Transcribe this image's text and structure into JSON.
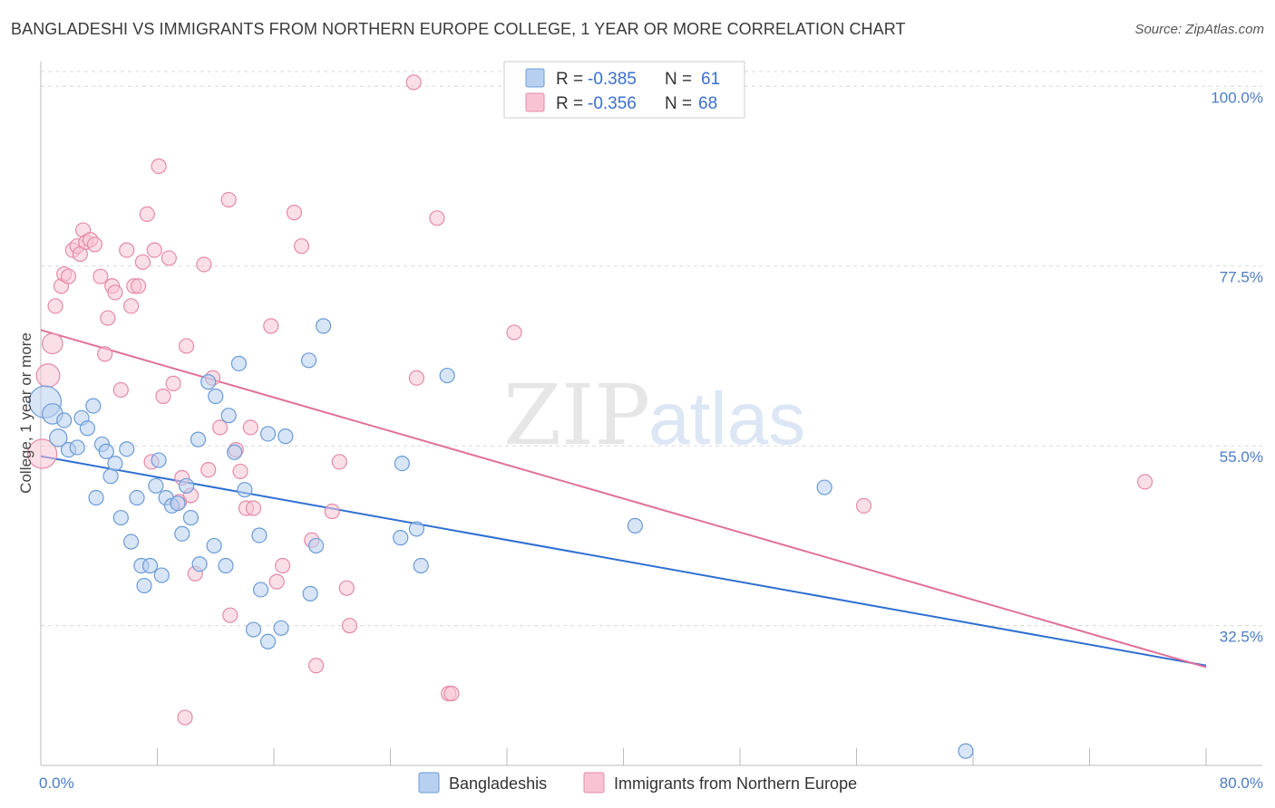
{
  "title": "BANGLADESHI VS IMMIGRANTS FROM NORTHERN EUROPE COLLEGE, 1 YEAR OR MORE CORRELATION CHART",
  "source": "Source: ZipAtlas.com",
  "watermark": {
    "zip": "ZIP",
    "atlas": "atlas"
  },
  "colors": {
    "blue_fill": "#b8d0f0",
    "blue_stroke": "#6a9bd8",
    "blue_line": "#2f6fd0",
    "pink_fill": "#f8c4d4",
    "pink_stroke": "#e58aa8",
    "pink_line": "#e0709a",
    "grid": "#d8d8d8",
    "tick_text": "#4a7cc7"
  },
  "legend": {
    "row1": {
      "r_label": "R = ",
      "r_value": "-0.385",
      "n_label": "N = ",
      "n_value": "61"
    },
    "row2": {
      "r_label": "R = ",
      "r_value": "-0.356",
      "n_label": "N = ",
      "n_value": "68"
    }
  },
  "bottom_legend": {
    "series1": "Bangladeshis",
    "series2": "Immigrants from Northern Europe"
  },
  "chart_data": {
    "type": "scatter",
    "title": "BANGLADESHI VS IMMIGRANTS FROM NORTHERN EUROPE COLLEGE, 1 YEAR OR MORE CORRELATION CHART",
    "xlabel": "",
    "ylabel": "College, 1 year or more",
    "xlim": [
      0,
      80
    ],
    "ylim": [
      15,
      104
    ],
    "x_tick_labels": [
      "0.0%",
      "80.0%"
    ],
    "y_ticks": [
      {
        "value": 100.0,
        "label": "100.0%"
      },
      {
        "value": 77.5,
        "label": "77.5%"
      },
      {
        "value": 55.0,
        "label": "55.0%"
      },
      {
        "value": 32.5,
        "label": "32.5%"
      }
    ],
    "grid": true,
    "legend_position": "top-center",
    "series": [
      {
        "name": "Bangladeshis",
        "r": -0.385,
        "n": 61,
        "trend": {
          "x": [
            0,
            80
          ],
          "y": [
            53.7,
            27.5
          ]
        },
        "points": [
          [
            0.3,
            60.5,
            22
          ],
          [
            0.8,
            59.0,
            14
          ],
          [
            1.2,
            56.0,
            12
          ],
          [
            1.6,
            58.2,
            10
          ],
          [
            1.9,
            54.5,
            10
          ],
          [
            2.5,
            54.8,
            10
          ],
          [
            2.8,
            58.5,
            10
          ],
          [
            3.2,
            57.2,
            10
          ],
          [
            3.6,
            60.0,
            10
          ],
          [
            3.8,
            48.5,
            10
          ],
          [
            4.2,
            55.2,
            10
          ],
          [
            4.5,
            54.3,
            10
          ],
          [
            4.8,
            51.2,
            10
          ],
          [
            5.1,
            52.8,
            10
          ],
          [
            5.5,
            46.0,
            10
          ],
          [
            5.9,
            54.6,
            10
          ],
          [
            6.2,
            43.0,
            10
          ],
          [
            6.6,
            48.5,
            10
          ],
          [
            6.9,
            40.0,
            10
          ],
          [
            7.1,
            37.5,
            10
          ],
          [
            7.5,
            40.0,
            10
          ],
          [
            7.9,
            50.0,
            10
          ],
          [
            8.1,
            53.2,
            10
          ],
          [
            8.3,
            38.8,
            10
          ],
          [
            8.6,
            48.5,
            10
          ],
          [
            9.0,
            47.5,
            10
          ],
          [
            9.4,
            47.8,
            10
          ],
          [
            9.7,
            44.0,
            10
          ],
          [
            10.0,
            50.0,
            10
          ],
          [
            10.3,
            46.0,
            10
          ],
          [
            10.8,
            55.8,
            10
          ],
          [
            10.9,
            40.2,
            10
          ],
          [
            11.5,
            63.0,
            10
          ],
          [
            11.9,
            42.5,
            10
          ],
          [
            12.0,
            61.2,
            10
          ],
          [
            12.7,
            40.0,
            10
          ],
          [
            12.9,
            58.8,
            10
          ],
          [
            13.3,
            54.2,
            10
          ],
          [
            13.6,
            65.3,
            10
          ],
          [
            14.0,
            49.5,
            10
          ],
          [
            14.6,
            32.0,
            10
          ],
          [
            15.0,
            43.8,
            10
          ],
          [
            15.1,
            37.0,
            10
          ],
          [
            15.6,
            30.5,
            10
          ],
          [
            15.6,
            56.5,
            10
          ],
          [
            16.5,
            32.2,
            10
          ],
          [
            16.8,
            56.2,
            10
          ],
          [
            18.4,
            65.7,
            10
          ],
          [
            18.5,
            36.5,
            10
          ],
          [
            18.9,
            42.5,
            10
          ],
          [
            19.4,
            70.0,
            10
          ],
          [
            24.7,
            43.5,
            10
          ],
          [
            24.8,
            52.8,
            10
          ],
          [
            25.8,
            44.6,
            10
          ],
          [
            26.1,
            40.0,
            10
          ],
          [
            27.9,
            63.8,
            10
          ],
          [
            40.8,
            45.0,
            10
          ],
          [
            53.8,
            49.8,
            10
          ],
          [
            63.5,
            16.8,
            10
          ]
        ]
      },
      {
        "name": "Immigrants from Northern Europe",
        "r": -0.356,
        "n": 68,
        "trend": {
          "x": [
            0,
            80
          ],
          "y": [
            69.5,
            27.3
          ]
        },
        "points": [
          [
            0.1,
            54.0,
            20
          ],
          [
            0.5,
            63.8,
            16
          ],
          [
            0.8,
            67.8,
            14
          ],
          [
            1.0,
            72.5,
            10
          ],
          [
            1.4,
            75.0,
            10
          ],
          [
            1.6,
            76.5,
            10
          ],
          [
            1.9,
            76.2,
            10
          ],
          [
            2.2,
            79.5,
            10
          ],
          [
            2.5,
            80.0,
            10
          ],
          [
            2.7,
            79.0,
            10
          ],
          [
            2.9,
            82.0,
            10
          ],
          [
            3.1,
            80.5,
            10
          ],
          [
            3.4,
            80.8,
            10
          ],
          [
            3.7,
            80.2,
            10
          ],
          [
            4.1,
            76.2,
            10
          ],
          [
            4.4,
            66.5,
            10
          ],
          [
            4.6,
            71.0,
            10
          ],
          [
            4.9,
            75.0,
            10
          ],
          [
            5.1,
            74.2,
            10
          ],
          [
            5.5,
            62.0,
            10
          ],
          [
            5.9,
            79.5,
            10
          ],
          [
            6.2,
            72.5,
            10
          ],
          [
            6.4,
            75.0,
            10
          ],
          [
            6.7,
            75.0,
            10
          ],
          [
            7.0,
            78.0,
            10
          ],
          [
            7.3,
            84.0,
            10
          ],
          [
            7.6,
            53.0,
            10
          ],
          [
            7.8,
            79.5,
            10
          ],
          [
            8.1,
            90.0,
            10
          ],
          [
            8.4,
            61.2,
            10
          ],
          [
            8.8,
            78.5,
            10
          ],
          [
            9.1,
            62.8,
            10
          ],
          [
            9.5,
            48.0,
            10
          ],
          [
            9.7,
            51.0,
            10
          ],
          [
            9.9,
            21.0,
            10
          ],
          [
            10.0,
            67.5,
            10
          ],
          [
            10.3,
            48.8,
            10
          ],
          [
            10.6,
            39.0,
            10
          ],
          [
            11.2,
            77.7,
            10
          ],
          [
            11.5,
            52.0,
            10
          ],
          [
            11.8,
            63.5,
            10
          ],
          [
            12.3,
            57.3,
            10
          ],
          [
            12.9,
            85.8,
            10
          ],
          [
            13.0,
            33.8,
            10
          ],
          [
            13.4,
            54.5,
            10
          ],
          [
            13.7,
            51.8,
            10
          ],
          [
            14.1,
            47.2,
            10
          ],
          [
            14.4,
            57.3,
            10
          ],
          [
            14.6,
            47.2,
            10
          ],
          [
            15.8,
            70.0,
            10
          ],
          [
            16.2,
            38.0,
            10
          ],
          [
            16.6,
            40.0,
            10
          ],
          [
            17.4,
            84.2,
            10
          ],
          [
            17.9,
            80.0,
            10
          ],
          [
            18.6,
            43.2,
            10
          ],
          [
            18.9,
            27.5,
            10
          ],
          [
            20.0,
            46.8,
            10
          ],
          [
            20.5,
            53.0,
            10
          ],
          [
            21.0,
            37.2,
            10
          ],
          [
            21.2,
            32.5,
            10
          ],
          [
            25.6,
            100.5,
            10
          ],
          [
            25.8,
            63.5,
            10
          ],
          [
            27.2,
            83.5,
            10
          ],
          [
            28.0,
            24.0,
            10
          ],
          [
            28.2,
            24.0,
            10
          ],
          [
            32.5,
            69.2,
            10
          ],
          [
            56.5,
            47.5,
            10
          ],
          [
            75.8,
            50.5,
            10
          ]
        ]
      }
    ]
  }
}
